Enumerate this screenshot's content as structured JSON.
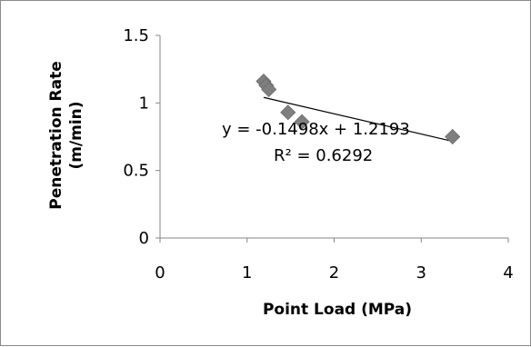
{
  "chart_data": {
    "type": "scatter",
    "title": "",
    "xlabel": "Point Load (MPa)",
    "ylabel_line1": "Penetration Rate",
    "ylabel_line2": "(m/min)",
    "xlim": [
      0,
      4
    ],
    "ylim": [
      0,
      1.5
    ],
    "x_ticks": [
      "0",
      "1",
      "2",
      "3",
      "4"
    ],
    "y_ticks": [
      "0",
      "0.5",
      "1",
      "1.5"
    ],
    "grid": false,
    "legend": "none",
    "marker_color": "#7f7f7f",
    "series": [
      {
        "points": [
          {
            "x": 1.19,
            "y": 1.16
          },
          {
            "x": 1.22,
            "y": 1.13
          },
          {
            "x": 1.25,
            "y": 1.1
          },
          {
            "x": 1.47,
            "y": 0.93
          },
          {
            "x": 1.63,
            "y": 0.86
          },
          {
            "x": 3.36,
            "y": 0.75
          }
        ]
      }
    ],
    "trendline": {
      "slope": -0.1498,
      "intercept": 1.2193,
      "x_start": 1.19,
      "x_end": 3.36,
      "equation": "y = -0.1498x + 1.2193",
      "r2": "R² = 0.6292"
    }
  }
}
